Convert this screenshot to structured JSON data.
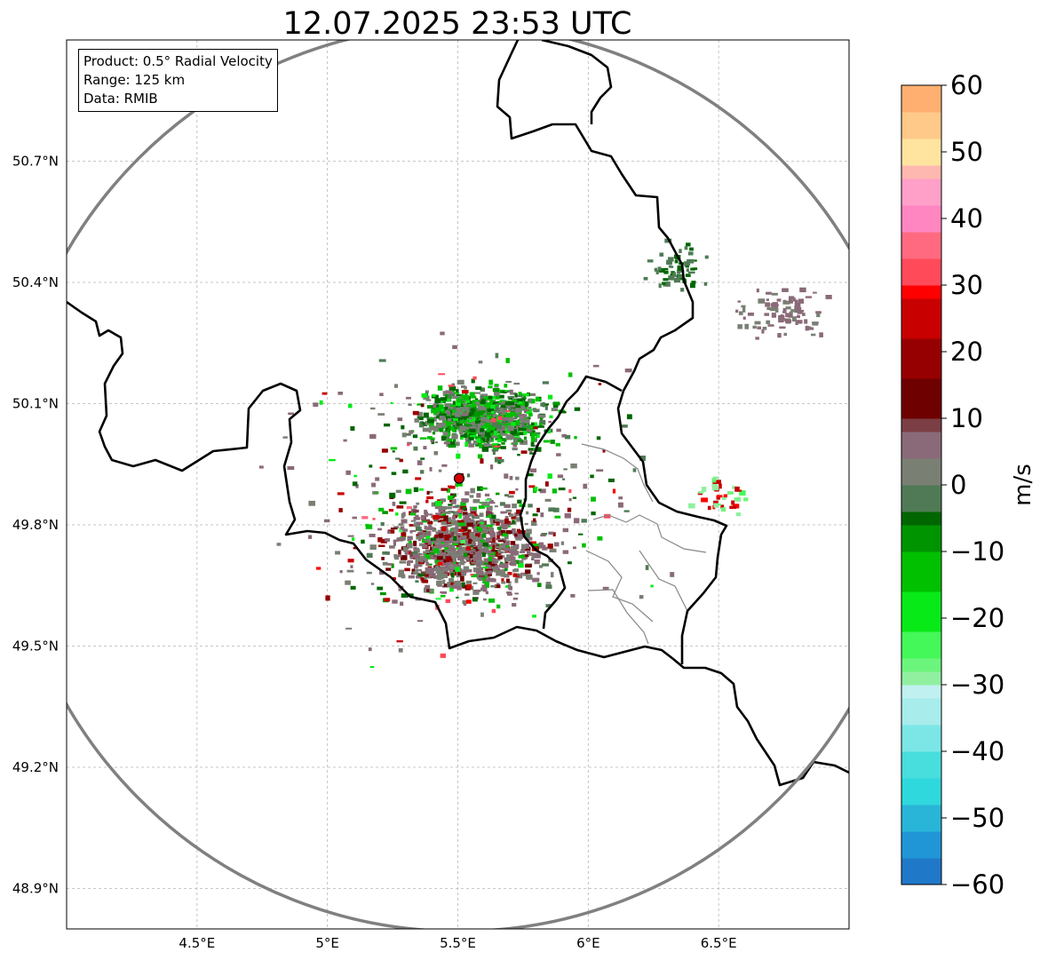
{
  "title": "12.07.2025 23:53 UTC",
  "info": {
    "product": "Product: 0.5° Radial Velocity",
    "range": "Range: 125 km",
    "data": "Data: RMIB"
  },
  "map": {
    "lat_ticks": [
      "50.7°N",
      "50.4°N",
      "50.1°N",
      "49.8°N",
      "49.5°N",
      "49.2°N",
      "48.9°N"
    ],
    "lon_ticks": [
      "4.5°E",
      "5°E",
      "5.5°E",
      "6°E",
      "6.5°E"
    ],
    "lat_values": [
      50.7,
      50.4,
      50.1,
      49.8,
      49.5,
      49.2,
      48.9
    ],
    "lon_values": [
      4.5,
      5.0,
      5.5,
      6.0,
      6.5
    ],
    "extent": {
      "lon_min": 4.0,
      "lon_max": 7.0,
      "lat_min": 48.8,
      "lat_max": 51.0
    },
    "radar_site": {
      "lon": 5.505,
      "lat": 49.915
    },
    "range_ring_km": 125,
    "radar_marker_color": "#d40000",
    "ring_color": "#808080"
  },
  "colorbar": {
    "label": "m/s",
    "ticks": [
      "60",
      "50",
      "40",
      "30",
      "20",
      "10",
      "0",
      "−10",
      "−20",
      "−30",
      "−40",
      "−50",
      "−60"
    ],
    "tick_values": [
      60,
      50,
      40,
      30,
      20,
      10,
      0,
      -10,
      -20,
      -30,
      -40,
      -50,
      -60
    ],
    "vmin": -60,
    "vmax": 60,
    "color_stops": [
      {
        "v": -60,
        "c": "#1f78c8"
      },
      {
        "v": -56,
        "c": "#2196d6"
      },
      {
        "v": -52,
        "c": "#29b5d8"
      },
      {
        "v": -48,
        "c": "#2fd8dc"
      },
      {
        "v": -44,
        "c": "#48dede"
      },
      {
        "v": -40,
        "c": "#7ce6e6"
      },
      {
        "v": -36,
        "c": "#a8ecec"
      },
      {
        "v": -32,
        "c": "#c0f0f0"
      },
      {
        "v": -30,
        "c": "#90f0a0"
      },
      {
        "v": -28,
        "c": "#6cf57c"
      },
      {
        "v": -26,
        "c": "#44f85a"
      },
      {
        "v": -22,
        "c": "#08ea18"
      },
      {
        "v": -16,
        "c": "#00c000"
      },
      {
        "v": -10,
        "c": "#009400"
      },
      {
        "v": -6,
        "c": "#006600"
      },
      {
        "v": -4,
        "c": "#4f7a55"
      },
      {
        "v": 0,
        "c": "#7a7f74"
      },
      {
        "v": 4,
        "c": "#8a6a78"
      },
      {
        "v": 8,
        "c": "#7a3e44"
      },
      {
        "v": 10,
        "c": "#6e0000"
      },
      {
        "v": 16,
        "c": "#960000"
      },
      {
        "v": 22,
        "c": "#c80000"
      },
      {
        "v": 28,
        "c": "#ff0000"
      },
      {
        "v": 30,
        "c": "#ff4a5a"
      },
      {
        "v": 34,
        "c": "#ff6a80"
      },
      {
        "v": 38,
        "c": "#ff86c0"
      },
      {
        "v": 42,
        "c": "#ffa0c8"
      },
      {
        "v": 46,
        "c": "#ffb8b0"
      },
      {
        "v": 48,
        "c": "#ffe4a0"
      },
      {
        "v": 52,
        "c": "#ffc98a"
      },
      {
        "v": 56,
        "c": "#ffb070"
      },
      {
        "v": 60,
        "c": "#ff9a55"
      }
    ]
  }
}
